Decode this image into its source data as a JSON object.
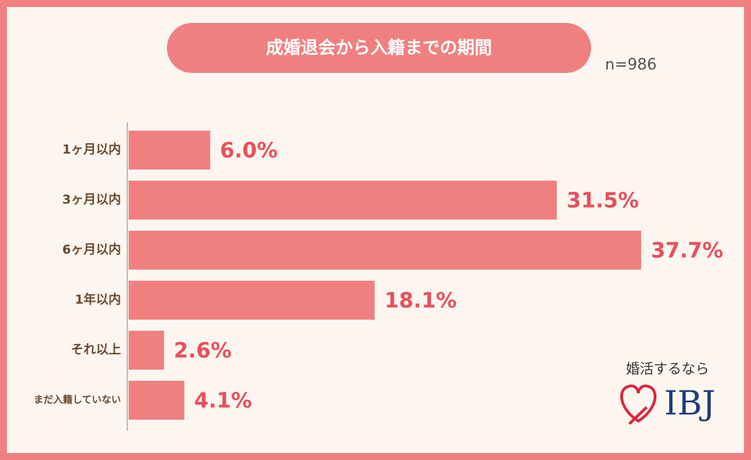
{
  "chart_data": {
    "type": "bar",
    "orientation": "horizontal",
    "title": "成婚退会から入籍までの期間",
    "subtitle": "n=986",
    "categories": [
      "1ヶ月以内",
      "3ヶ月以内",
      "6ヶ月以内",
      "1年以内",
      "それ以上",
      "まだ入籍していない"
    ],
    "values": [
      6.0,
      31.5,
      37.7,
      18.1,
      2.6,
      4.1
    ],
    "value_labels": [
      "6.0%",
      "31.5%",
      "37.7%",
      "18.1%",
      "2.6%",
      "4.1%"
    ],
    "color": "#f08080",
    "logo": {
      "tagline": "婚活するなら",
      "name": "IBJ"
    }
  }
}
